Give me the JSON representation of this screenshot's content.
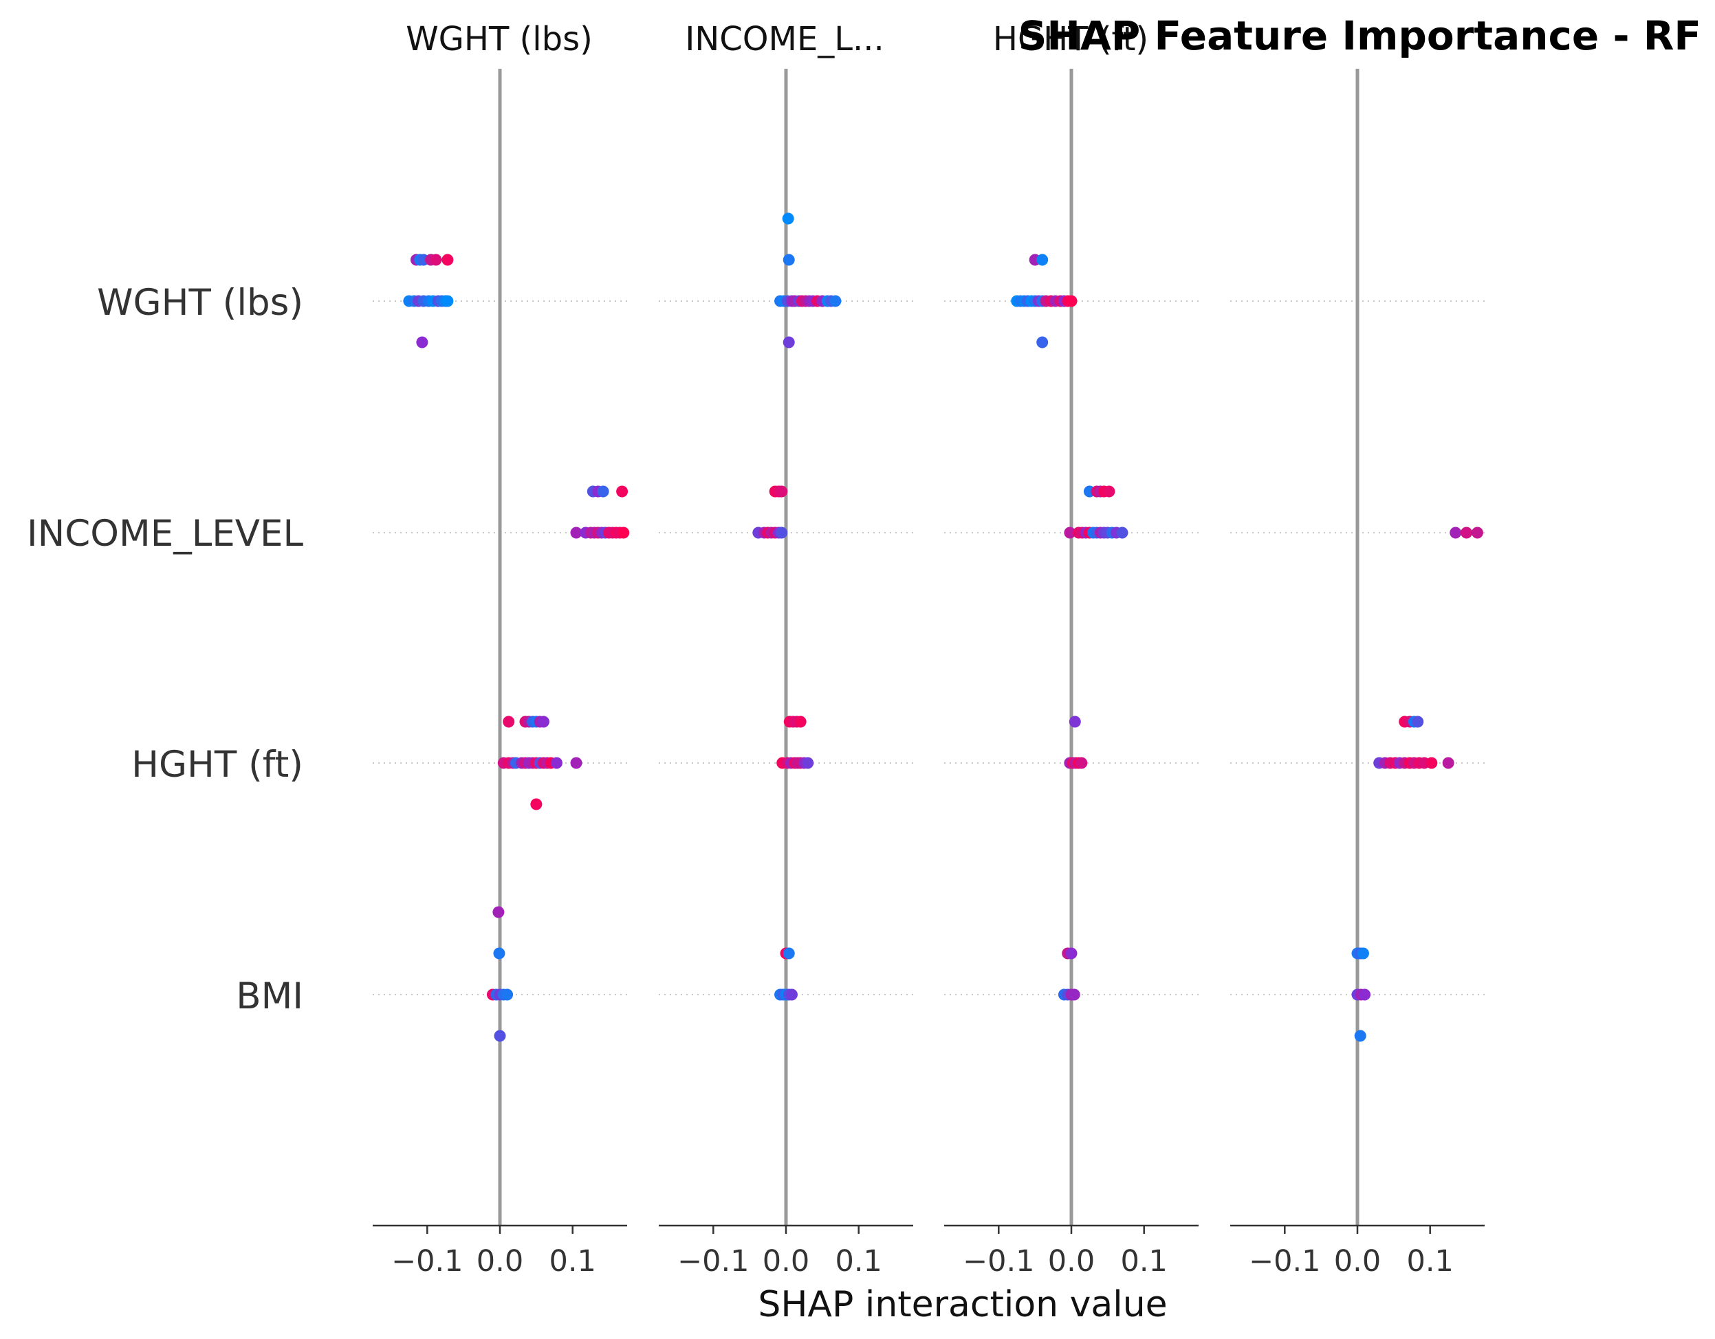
{
  "chart_data": {
    "type": "scatter",
    "title": "SHAP Feature Importance - RF",
    "xlabel": "SHAP interaction value",
    "features": [
      "WGHT (lbs)",
      "INCOME_LEVEL",
      "HGHT (ft)",
      "BMI"
    ],
    "panel_titles": [
      "WGHT (lbs)",
      "INCOME_L...",
      "HGHT (ft)",
      ""
    ],
    "xlim": [
      -0.175,
      0.175
    ],
    "xticks": [
      -0.1,
      0.0,
      0.1
    ],
    "xtick_labels": [
      "−0.1",
      "0.0",
      "0.1"
    ],
    "colormap": [
      "#008afb",
      "#8b2bd2",
      "#ff0052"
    ],
    "panels": [
      {
        "rows": [
          [
            [
              -0.115,
              -1,
              0.6
            ],
            [
              -0.11,
              -1,
              0.1
            ],
            [
              -0.105,
              -1,
              0.2
            ],
            [
              -0.095,
              -1,
              0.75
            ],
            [
              -0.088,
              -1,
              0.85
            ],
            [
              -0.072,
              -1,
              0.95
            ],
            [
              -0.125,
              0,
              0.05
            ],
            [
              -0.118,
              0,
              0.1
            ],
            [
              -0.112,
              0,
              0.4
            ],
            [
              -0.105,
              0,
              0.2
            ],
            [
              -0.098,
              0,
              0.1
            ],
            [
              -0.092,
              0,
              0.0
            ],
            [
              -0.085,
              0,
              0.3
            ],
            [
              -0.08,
              0,
              0.15
            ],
            [
              -0.075,
              0,
              0.05
            ],
            [
              -0.072,
              0,
              0.0
            ],
            [
              -0.107,
              1,
              0.5
            ]
          ],
          [
            [
              0.128,
              -1,
              0.3
            ],
            [
              0.135,
              -1,
              0.5
            ],
            [
              0.142,
              -1,
              0.2
            ],
            [
              0.168,
              -1,
              0.95
            ],
            [
              0.105,
              0,
              0.6
            ],
            [
              0.118,
              0,
              0.5
            ],
            [
              0.125,
              0,
              0.7
            ],
            [
              0.13,
              0,
              0.65
            ],
            [
              0.135,
              0,
              0.8
            ],
            [
              0.14,
              0,
              0.55
            ],
            [
              0.145,
              0,
              0.4
            ],
            [
              0.15,
              0,
              0.9
            ],
            [
              0.155,
              0,
              0.85
            ],
            [
              0.16,
              0,
              0.95
            ],
            [
              0.165,
              0,
              0.9
            ],
            [
              0.17,
              0,
              1.0
            ]
          ],
          [
            [
              0.012,
              -1,
              0.9
            ],
            [
              0.035,
              -1,
              0.85
            ],
            [
              0.04,
              -1,
              0.7
            ],
            [
              0.045,
              -1,
              0.2
            ],
            [
              0.05,
              -1,
              0.1
            ],
            [
              0.055,
              -1,
              0.6
            ],
            [
              0.06,
              -1,
              0.5
            ],
            [
              0.005,
              0,
              0.8
            ],
            [
              0.012,
              0,
              0.9
            ],
            [
              0.018,
              0,
              0.75
            ],
            [
              0.022,
              0,
              0.2
            ],
            [
              0.03,
              0,
              0.6
            ],
            [
              0.035,
              0,
              0.8
            ],
            [
              0.04,
              0,
              0.55
            ],
            [
              0.045,
              0,
              0.65
            ],
            [
              0.05,
              0,
              0.9
            ],
            [
              0.055,
              0,
              0.35
            ],
            [
              0.06,
              0,
              0.85
            ],
            [
              0.065,
              0,
              0.7
            ],
            [
              0.07,
              0,
              0.95
            ],
            [
              0.078,
              0,
              0.5
            ],
            [
              0.105,
              0,
              0.6
            ],
            [
              0.05,
              1,
              0.95
            ]
          ],
          [
            [
              -0.002,
              -2,
              0.6
            ],
            [
              -0.001,
              -1,
              0.1
            ],
            [
              -0.01,
              0,
              0.9
            ],
            [
              -0.005,
              0,
              0.2
            ],
            [
              0.0,
              0,
              0.4
            ],
            [
              0.005,
              0,
              0.15
            ],
            [
              0.01,
              0,
              0.1
            ],
            [
              0.0,
              1,
              0.3
            ]
          ]
        ]
      },
      {
        "rows": [
          [
            [
              0.003,
              -2,
              0.0
            ],
            [
              0.004,
              -1,
              0.1
            ],
            [
              -0.008,
              0,
              0.1
            ],
            [
              -0.003,
              0,
              0.05
            ],
            [
              0.002,
              0,
              0.3
            ],
            [
              0.008,
              0,
              0.55
            ],
            [
              0.012,
              0,
              0.6
            ],
            [
              0.018,
              0,
              0.4
            ],
            [
              0.022,
              0,
              0.85
            ],
            [
              0.027,
              0,
              0.75
            ],
            [
              0.032,
              0,
              0.6
            ],
            [
              0.037,
              0,
              0.5
            ],
            [
              0.043,
              0,
              0.9
            ],
            [
              0.05,
              0,
              0.55
            ],
            [
              0.057,
              0,
              0.05
            ],
            [
              0.062,
              0,
              0.25
            ],
            [
              0.068,
              0,
              0.1
            ],
            [
              0.004,
              1,
              0.4
            ]
          ],
          [
            [
              -0.015,
              -1,
              0.95
            ],
            [
              -0.01,
              -1,
              0.9
            ],
            [
              -0.006,
              -1,
              0.85
            ],
            [
              -0.038,
              0,
              0.4
            ],
            [
              -0.03,
              0,
              0.6
            ],
            [
              -0.025,
              0,
              0.9
            ],
            [
              -0.02,
              0,
              0.7
            ],
            [
              -0.015,
              0,
              0.85
            ],
            [
              -0.01,
              0,
              0.5
            ],
            [
              -0.006,
              0,
              0.3
            ]
          ],
          [
            [
              0.005,
              -1,
              0.95
            ],
            [
              0.01,
              -1,
              0.9
            ],
            [
              0.015,
              -1,
              0.85
            ],
            [
              0.02,
              -1,
              0.95
            ],
            [
              -0.005,
              0,
              0.95
            ],
            [
              0.002,
              0,
              0.85
            ],
            [
              0.007,
              0,
              0.6
            ],
            [
              0.012,
              0,
              0.9
            ],
            [
              0.016,
              0,
              0.75
            ],
            [
              0.02,
              0,
              0.8
            ],
            [
              0.025,
              0,
              0.55
            ],
            [
              0.03,
              0,
              0.4
            ]
          ],
          [
            [
              0.0,
              -1,
              0.95
            ],
            [
              0.004,
              -1,
              0.1
            ],
            [
              -0.008,
              0,
              0.1
            ],
            [
              -0.004,
              0,
              0.2
            ],
            [
              0.0,
              0,
              0.05
            ],
            [
              0.004,
              0,
              0.3
            ],
            [
              0.008,
              0,
              0.4
            ]
          ]
        ]
      },
      {
        "rows": [
          [
            [
              -0.05,
              -1,
              0.6
            ],
            [
              -0.04,
              -1,
              0.05
            ],
            [
              -0.075,
              0,
              0.0
            ],
            [
              -0.07,
              0,
              0.1
            ],
            [
              -0.065,
              0,
              0.05
            ],
            [
              -0.06,
              0,
              0.2
            ],
            [
              -0.055,
              0,
              0.0
            ],
            [
              -0.05,
              0,
              0.1
            ],
            [
              -0.045,
              0,
              0.45
            ],
            [
              -0.04,
              0,
              0.15
            ],
            [
              -0.035,
              0,
              0.75
            ],
            [
              -0.028,
              0,
              0.9
            ],
            [
              -0.022,
              0,
              0.6
            ],
            [
              -0.015,
              0,
              0.85
            ],
            [
              -0.01,
              0,
              0.5
            ],
            [
              -0.005,
              0,
              0.95
            ],
            [
              0.0,
              0,
              1.0
            ],
            [
              -0.04,
              1,
              0.2
            ]
          ],
          [
            [
              0.025,
              -1,
              0.1
            ],
            [
              0.035,
              -1,
              0.85
            ],
            [
              0.04,
              -1,
              0.7
            ],
            [
              0.045,
              -1,
              0.95
            ],
            [
              0.052,
              -1,
              0.9
            ],
            [
              -0.002,
              0,
              0.7
            ],
            [
              0.01,
              0,
              0.9
            ],
            [
              0.015,
              0,
              0.85
            ],
            [
              0.02,
              0,
              0.55
            ],
            [
              0.025,
              0,
              0.95
            ],
            [
              0.03,
              0,
              0.1
            ],
            [
              0.035,
              0,
              0.2
            ],
            [
              0.04,
              0,
              0.6
            ],
            [
              0.045,
              0,
              0.4
            ],
            [
              0.05,
              0,
              0.35
            ],
            [
              0.056,
              0,
              0.15
            ],
            [
              0.062,
              0,
              0.45
            ],
            [
              0.07,
              0,
              0.3
            ]
          ],
          [
            [
              0.005,
              -1,
              0.45
            ],
            [
              -0.002,
              0,
              0.6
            ],
            [
              0.002,
              0,
              0.9
            ],
            [
              0.006,
              0,
              0.7
            ],
            [
              0.01,
              0,
              0.95
            ],
            [
              0.014,
              0,
              0.8
            ]
          ],
          [
            [
              -0.005,
              -1,
              0.75
            ],
            [
              0.0,
              -1,
              0.5
            ],
            [
              -0.01,
              0,
              0.15
            ],
            [
              -0.005,
              0,
              0.3
            ],
            [
              0.0,
              0,
              0.6
            ],
            [
              0.004,
              0,
              0.55
            ]
          ]
        ]
      },
      {
        "rows": [
          [],
          [
            [
              0.135,
              0,
              0.6
            ],
            [
              0.15,
              0,
              0.8
            ],
            [
              0.165,
              0,
              0.75
            ]
          ],
          [
            [
              0.065,
              -1,
              0.95
            ],
            [
              0.072,
              -1,
              0.85
            ],
            [
              0.078,
              -1,
              0.1
            ],
            [
              0.083,
              -1,
              0.3
            ],
            [
              0.03,
              0,
              0.4
            ],
            [
              0.038,
              0,
              0.6
            ],
            [
              0.045,
              0,
              0.85
            ],
            [
              0.052,
              0,
              0.9
            ],
            [
              0.058,
              0,
              0.55
            ],
            [
              0.065,
              0,
              0.75
            ],
            [
              0.072,
              0,
              0.95
            ],
            [
              0.078,
              0,
              0.8
            ],
            [
              0.085,
              0,
              0.9
            ],
            [
              0.092,
              0,
              0.85
            ],
            [
              0.102,
              0,
              0.95
            ],
            [
              0.125,
              0,
              0.7
            ]
          ],
          [
            [
              0.0,
              -1,
              0.1
            ],
            [
              0.004,
              -1,
              0.2
            ],
            [
              0.008,
              -1,
              0.05
            ],
            [
              0.0,
              0,
              0.4
            ],
            [
              0.005,
              0,
              0.6
            ],
            [
              0.01,
              0,
              0.5
            ],
            [
              0.004,
              1,
              0.1
            ]
          ]
        ]
      }
    ]
  }
}
